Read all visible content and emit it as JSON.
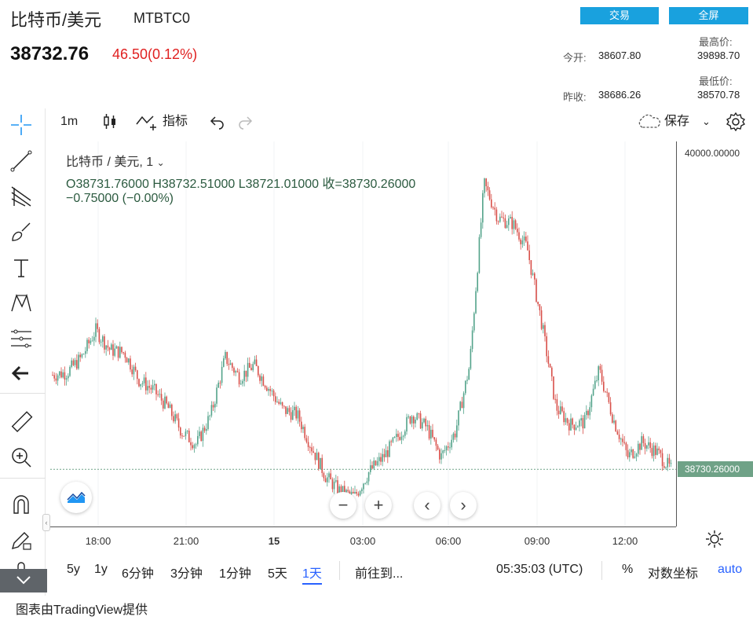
{
  "header": {
    "title": "比特币/美元",
    "symbol": "MTBTC0",
    "price": "38732.76",
    "change": "46.50(0.12%)",
    "trade_button": "交易",
    "fullscreen_button": "全屏",
    "stats": {
      "open_label": "今开:",
      "open_value": "38607.80",
      "high_label": "最高价:",
      "high_value": "39898.70",
      "prev_close_label": "昨收:",
      "prev_close_value": "38686.26",
      "low_label": "最低价:",
      "low_value": "38570.78"
    }
  },
  "toolbar": {
    "interval": "1m",
    "indicators": "指标",
    "save": "保存"
  },
  "left_tools": [
    "crosshair-icon",
    "trend-line-icon",
    "pitchfork-icon",
    "brush-icon",
    "text-icon",
    "pattern-icon",
    "forecast-icon",
    "back-arrow-icon",
    "ruler-icon",
    "zoom-in-icon",
    "magnet-icon",
    "lock-pencil-icon",
    "lock-icon",
    "trash-icon"
  ],
  "chart": {
    "legend": "比特币 / 美元, 1",
    "ohlc": "O38731.76000   H38732.51000   L38721.01000   收=38730.26000",
    "change": "−0.75000 (−0.00%)",
    "price_axis_top": "40000.00000",
    "last_price_label": "38730.26000",
    "time_labels": [
      "18:00",
      "21:00",
      "15",
      "03:00",
      "06:00",
      "09:00",
      "12:00"
    ]
  },
  "chart_data": {
    "type": "line",
    "title": "比特币 / 美元, 1",
    "xlabel": "",
    "ylabel": "",
    "x": [
      "16:30",
      "17:00",
      "17:30",
      "18:00",
      "18:30",
      "19:00",
      "19:30",
      "20:00",
      "20:30",
      "21:00",
      "21:30",
      "22:00",
      "22:30",
      "23:00",
      "23:30",
      "00:00",
      "00:30",
      "01:00",
      "01:30",
      "02:00",
      "02:30",
      "03:00",
      "03:30",
      "04:00",
      "04:30",
      "05:00",
      "05:30",
      "06:00",
      "06:30",
      "06:50",
      "07:00",
      "07:30",
      "08:00",
      "08:30",
      "09:00",
      "09:30",
      "10:00",
      "10:30",
      "11:00",
      "11:30",
      "12:00",
      "12:30",
      "13:00",
      "13:30"
    ],
    "values": [
      39110,
      39120,
      39180,
      39290,
      39210,
      39200,
      39090,
      39050,
      38980,
      38880,
      38830,
      38950,
      39180,
      39100,
      39150,
      39060,
      38970,
      38950,
      38820,
      38700,
      38640,
      38620,
      38720,
      38780,
      38860,
      38950,
      38900,
      38780,
      38880,
      39150,
      39880,
      39740,
      39720,
      39620,
      39320,
      38980,
      38910,
      38920,
      39130,
      38930,
      38780,
      38840,
      38800,
      38730
    ],
    "ylim": [
      38500,
      40050
    ],
    "last_price": 38730.26,
    "grid": true
  },
  "bottom": {
    "ranges": [
      "5y",
      "1y",
      "6分钟",
      "3分钟",
      "1分钟",
      "5天",
      "1天"
    ],
    "goto": "前往到...",
    "time": "05:35:03 (UTC)",
    "percent": "%",
    "log": "对数坐标",
    "auto": "auto"
  },
  "credit": "图表由TradingView提供",
  "colors": {
    "accent": "#19a1de",
    "down": "#e02020",
    "last_price_bg": "#6fa287",
    "candle_up": "#53a38a",
    "candle_down": "#d8504a"
  }
}
